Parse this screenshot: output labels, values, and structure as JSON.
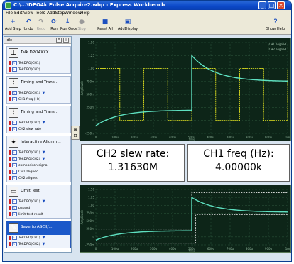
{
  "window": {
    "title": "C:\\...\\DPO4k Pulse Acquire2.wbp - Express Workbench"
  },
  "menu": [
    "File",
    "Edit",
    "View",
    "Tools",
    "AddStep",
    "Window",
    "Help"
  ],
  "toolbar": {
    "add_step": "Add Step",
    "undo": "Undo",
    "redo": "Redo",
    "run": "Run",
    "run_once": "Run Once",
    "stop": "Stop",
    "reset_all": "Reset All",
    "add_display": "AddDisplay",
    "show_help": "Show Help"
  },
  "left_pane": {
    "header": "Idle",
    "steps": [
      {
        "title": "Talk DPO4XXX",
        "icon": "oscilloscope-icon",
        "rows": [
          {
            "label": "TekDPO(CH1)",
            "arrow": false
          },
          {
            "label": "TekDPO(CH2)",
            "arrow": false
          }
        ]
      },
      {
        "title": "Timing and Trans...",
        "icon": "timing-icon",
        "rows": [
          {
            "label": "TekDPO(CH1)",
            "arrow": true
          },
          {
            "label": "CH1 freq (Hz)",
            "arrow": false
          }
        ]
      },
      {
        "title": "Timing and Trans...",
        "icon": "timing-icon",
        "rows": [
          {
            "label": "TekDPO(CH2)",
            "arrow": true
          },
          {
            "label": "CH2 slew rate",
            "arrow": false
          }
        ]
      },
      {
        "title": "Interactive Alignm...",
        "icon": "alignment-icon",
        "rows": [
          {
            "label": "TekDPO(CH1)",
            "arrow": true
          },
          {
            "label": "TekDPO(CH2)",
            "arrow": true
          },
          {
            "label": "comparison signal",
            "arrow": false
          },
          {
            "label": "CH1 aligned",
            "arrow": false
          },
          {
            "label": "CH2 aligned",
            "arrow": false
          }
        ]
      },
      {
        "title": "Limit Test",
        "icon": "limit-test-icon",
        "rows": [
          {
            "label": "TekDPO(CH1)",
            "arrow": true
          },
          {
            "label": "passed",
            "arrow": false
          },
          {
            "label": "limit test result",
            "arrow": false
          }
        ]
      },
      {
        "title": "Save to ASCII/...",
        "icon": "save-icon",
        "rows": [
          {
            "label": "TekDPO(CH1)",
            "arrow": true
          },
          {
            "label": "TekDPO(CH2)",
            "arrow": true
          }
        ]
      }
    ]
  },
  "display_top": {
    "legend": [
      "CH1 aligned",
      "CH2 aligned"
    ],
    "y_ticks": [
      "1.50",
      "1.25",
      "1.00",
      "750m",
      "500m",
      "250m",
      "0",
      "-250m"
    ],
    "x_ticks": [
      "0",
      "100u",
      "200u",
      "300u",
      "400u",
      "500u",
      "600u",
      "700u",
      "800u",
      "900u",
      "1m"
    ],
    "ylabel": "Amplitude",
    "xlabel": "Time"
  },
  "readouts": [
    {
      "label": "CH2 slew rate:",
      "value": "1.31630M"
    },
    {
      "label": "CH1 freq (Hz):",
      "value": "4.00000k"
    }
  ],
  "display_bottom": {
    "y_ticks": [
      "1.50",
      "1.25",
      "1.00",
      "750m",
      "500m",
      "250m",
      "0",
      "-250m"
    ],
    "x_ticks": [
      "0",
      "100u",
      "200u",
      "300u",
      "400u",
      "500u",
      "600u",
      "700u",
      "800u",
      "900u",
      "1m"
    ],
    "ylabel": "Amplitude",
    "xlabel": "Time"
  },
  "colors": {
    "ch1": "#e4e41e",
    "ch2": "#5ee0c0",
    "grid": "#2f5a3f",
    "limit": "#e8e8e8",
    "selection": "#1b58c9"
  }
}
